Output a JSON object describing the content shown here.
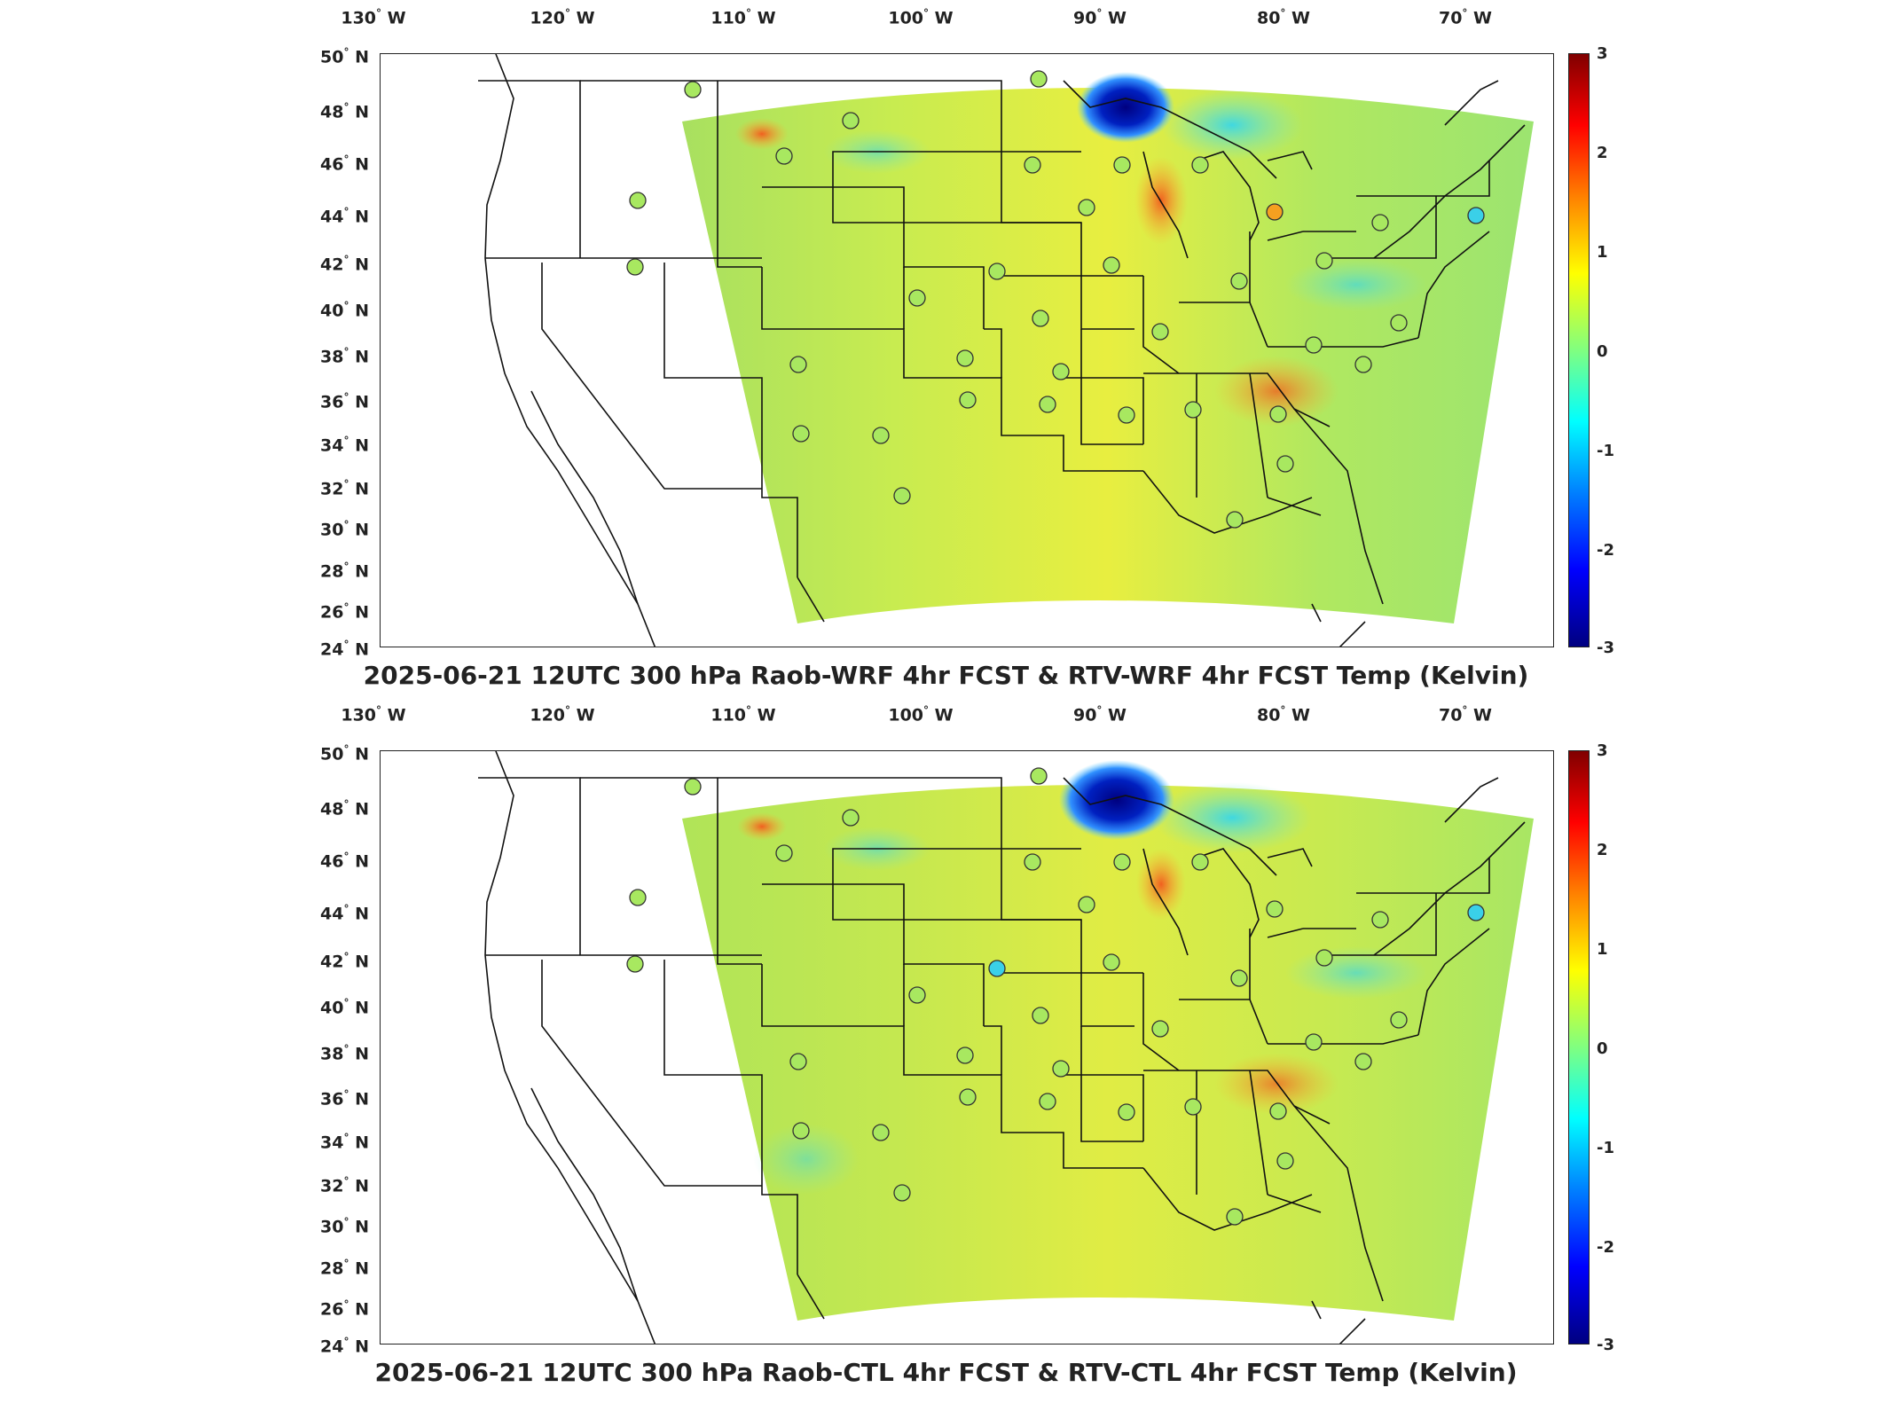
{
  "panels": [
    {
      "id": "top",
      "title": "2025-06-21 12UTC 300 hPa Raob-WRF 4hr FCST & RTV-WRF 4hr FCST Temp (Kelvin)"
    },
    {
      "id": "bottom",
      "title": "2025-06-21 12UTC 300 hPa Raob-CTL 4hr FCST & RTV-CTL 4hr FCST Temp (Kelvin)"
    }
  ],
  "longitude_ticks": [
    "130",
    "120",
    "110",
    "100",
    "90",
    "80",
    "70"
  ],
  "longitude_suffix": "W",
  "latitude_ticks": [
    "50",
    "48",
    "46",
    "44",
    "42",
    "40",
    "38",
    "36",
    "34",
    "32",
    "30",
    "28",
    "26",
    "24"
  ],
  "latitude_suffix": "N",
  "degree_symbol": "°",
  "colorbar": {
    "ticks": [
      "3",
      "2",
      "1",
      "0",
      "-1",
      "-2",
      "-3"
    ],
    "range": [
      -3,
      3
    ],
    "colors": [
      "#000080",
      "#0000ff",
      "#0080ff",
      "#00ffff",
      "#80ff80",
      "#ffff00",
      "#ff8000",
      "#ff0000",
      "#800000"
    ]
  },
  "raob_stations_note_colors": {
    "near_zero": "#a8e860",
    "warm": "#f5a020",
    "cold": "#3ad0e8"
  }
}
